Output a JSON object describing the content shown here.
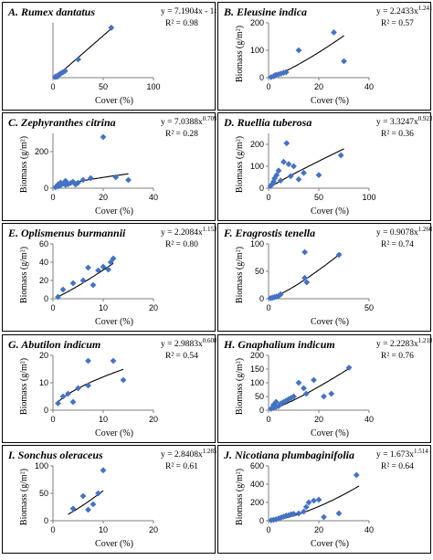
{
  "figure": {
    "background": "#ffffff"
  },
  "style": {
    "marker_color": "#4472C4",
    "axis_color": "#7f7f7f",
    "trend_color": "#000000"
  },
  "chart_data": [
    {
      "id": "A",
      "type": "scatter",
      "title": "A. Rumex dantatus",
      "equation": {
        "base": "y = 7.1904x - 14.645",
        "exp": ""
      },
      "r2": "R² = 0.98",
      "xlabel": "Cover (%)",
      "ylabel": "",
      "xlim": [
        0,
        100
      ],
      "ylim": [
        0,
        450
      ],
      "xticks": [
        "0",
        "50",
        "100"
      ],
      "yticks": [],
      "trend": {
        "kind": "linear",
        "a": 7.1904,
        "b": -14.645,
        "x_range": [
          3,
          60
        ]
      },
      "points": [
        [
          2,
          5
        ],
        [
          3,
          10
        ],
        [
          4,
          8
        ],
        [
          5,
          12
        ],
        [
          6,
          25
        ],
        [
          8,
          35
        ],
        [
          10,
          45
        ],
        [
          12,
          55
        ],
        [
          25,
          150
        ],
        [
          58,
          410
        ]
      ]
    },
    {
      "id": "B",
      "type": "scatter",
      "title": "B. Eleusine indica",
      "equation": {
        "base": "y = 2.2433x",
        "exp": "1.2412"
      },
      "r2": "R² = 0.57",
      "xlabel": "Cover (%)",
      "ylabel": "Biomass (g/m²)",
      "xlim": [
        0,
        40
      ],
      "ylim": [
        0,
        200
      ],
      "xticks": [
        "0",
        "20",
        "40"
      ],
      "yticks": [
        "0",
        "100",
        "200"
      ],
      "trend": {
        "kind": "power",
        "a": 2.2433,
        "b": 1.2412,
        "x_range": [
          0.5,
          30
        ]
      },
      "points": [
        [
          1,
          2
        ],
        [
          2,
          5
        ],
        [
          2.5,
          8
        ],
        [
          3,
          10
        ],
        [
          4,
          12
        ],
        [
          5,
          15
        ],
        [
          6,
          18
        ],
        [
          7,
          20
        ],
        [
          12,
          100
        ],
        [
          26,
          165
        ],
        [
          30,
          60
        ]
      ]
    },
    {
      "id": "C",
      "type": "scatter",
      "title": "C. Zephyranthes citrina",
      "equation": {
        "base": "y = 7.0388x",
        "exp": "0.7095"
      },
      "r2": "R² = 0.28",
      "xlabel": "Cover (%)",
      "ylabel": "Biomass (g/m²)",
      "xlim": [
        0,
        40
      ],
      "ylim": [
        0,
        300
      ],
      "xticks": [
        "0",
        "20",
        "40"
      ],
      "yticks": [
        "0",
        "200"
      ],
      "trend": {
        "kind": "power",
        "a": 7.0388,
        "b": 0.7095,
        "x_range": [
          0.5,
          30
        ]
      },
      "points": [
        [
          1,
          5
        ],
        [
          2,
          10
        ],
        [
          2,
          20
        ],
        [
          3,
          15
        ],
        [
          3,
          30
        ],
        [
          4,
          25
        ],
        [
          5,
          40
        ],
        [
          5,
          18
        ],
        [
          6,
          22
        ],
        [
          7,
          28
        ],
        [
          8,
          35
        ],
        [
          9,
          20
        ],
        [
          10,
          30
        ],
        [
          12,
          45
        ],
        [
          15,
          55
        ],
        [
          20,
          280
        ],
        [
          25,
          60
        ],
        [
          30,
          45
        ]
      ]
    },
    {
      "id": "D",
      "type": "scatter",
      "title": "D. Ruellia tuberosa",
      "equation": {
        "base": "y = 3.3247x",
        "exp": "0.9238"
      },
      "r2": "R² = 0.36",
      "xlabel": "Cover (%)",
      "ylabel": "Biomass (g/m²)",
      "xlim": [
        0,
        100
      ],
      "ylim": [
        0,
        250
      ],
      "xticks": [
        "0",
        "50",
        "100"
      ],
      "yticks": [
        "0",
        "100",
        "200"
      ],
      "trend": {
        "kind": "power",
        "a": 3.3247,
        "b": 0.9238,
        "x_range": [
          0.5,
          75
        ]
      },
      "points": [
        [
          2,
          10
        ],
        [
          3,
          15
        ],
        [
          4,
          20
        ],
        [
          5,
          30
        ],
        [
          6,
          45
        ],
        [
          8,
          60
        ],
        [
          10,
          80
        ],
        [
          12,
          35
        ],
        [
          15,
          120
        ],
        [
          18,
          205
        ],
        [
          20,
          110
        ],
        [
          22,
          55
        ],
        [
          25,
          100
        ],
        [
          30,
          40
        ],
        [
          35,
          70
        ],
        [
          50,
          60
        ],
        [
          72,
          150
        ]
      ]
    },
    {
      "id": "E",
      "type": "scatter",
      "title": "E. Oplismenus burmannii",
      "equation": {
        "base": "y = 2.2084x",
        "exp": "1.1531"
      },
      "r2": "R² = 0.80",
      "xlabel": "Cover (%)",
      "ylabel": "Biomass (g/m²)",
      "xlim": [
        0,
        20
      ],
      "ylim": [
        0,
        60
      ],
      "xticks": [
        "0",
        "10",
        "20"
      ],
      "yticks": [
        "0",
        "20",
        "40",
        "60"
      ],
      "trend": {
        "kind": "power",
        "a": 2.2084,
        "b": 1.1531,
        "x_range": [
          1,
          12
        ]
      },
      "points": [
        [
          1,
          2
        ],
        [
          2,
          10
        ],
        [
          4,
          17
        ],
        [
          6,
          20
        ],
        [
          7,
          34
        ],
        [
          8,
          15
        ],
        [
          9,
          31
        ],
        [
          10,
          35
        ],
        [
          11,
          32
        ],
        [
          11.5,
          40
        ],
        [
          12,
          44
        ]
      ]
    },
    {
      "id": "F",
      "type": "scatter",
      "title": "F. Eragrostis tenella",
      "equation": {
        "base": "y = 0.9078x",
        "exp": "1.2604"
      },
      "r2": "R² = 0.74",
      "xlabel": "Cover (%)",
      "ylabel": "Biomass (g/m²)",
      "xlim": [
        0,
        50
      ],
      "ylim": [
        0,
        100
      ],
      "xticks": [
        "0",
        "50"
      ],
      "yticks": [
        "0",
        "50",
        "100"
      ],
      "trend": {
        "kind": "power",
        "a": 0.9078,
        "b": 1.2604,
        "x_range": [
          1,
          36
        ]
      },
      "points": [
        [
          1,
          1
        ],
        [
          2,
          2
        ],
        [
          3,
          3
        ],
        [
          4,
          4
        ],
        [
          5,
          5
        ],
        [
          6,
          8
        ],
        [
          18,
          85
        ],
        [
          18,
          38
        ],
        [
          19,
          30
        ],
        [
          35,
          80
        ]
      ]
    },
    {
      "id": "G",
      "type": "scatter",
      "title": "G. Abutilon indicum",
      "equation": {
        "base": "y = 2.9883x",
        "exp": "0.6088"
      },
      "r2": "R² = 0.54",
      "xlabel": "Cover (%)",
      "ylabel": "Biomass (g/m²)",
      "xlim": [
        0,
        20
      ],
      "ylim": [
        0,
        20
      ],
      "xticks": [
        "0",
        "10",
        "20"
      ],
      "yticks": [
        "0",
        "10",
        "20"
      ],
      "trend": {
        "kind": "power",
        "a": 2.9883,
        "b": 0.6088,
        "x_range": [
          1,
          14
        ]
      },
      "points": [
        [
          1,
          2.5
        ],
        [
          2,
          5
        ],
        [
          3,
          6
        ],
        [
          4,
          3
        ],
        [
          5,
          8
        ],
        [
          7,
          9
        ],
        [
          7,
          18
        ],
        [
          12,
          18
        ],
        [
          14,
          11
        ]
      ]
    },
    {
      "id": "H",
      "type": "scatter",
      "title": "H. Gnaphalium indicum",
      "equation": {
        "base": "y = 2.2283x",
        "exp": "1.2184"
      },
      "r2": "R² = 0.76",
      "xlabel": "Cover (%)",
      "ylabel": "Biomass (g/m²)",
      "xlim": [
        0,
        40
      ],
      "ylim": [
        0,
        200
      ],
      "xticks": [
        "0",
        "20",
        "40"
      ],
      "yticks": [
        "0",
        "50",
        "100",
        "150",
        "200"
      ],
      "trend": {
        "kind": "power",
        "a": 2.2283,
        "b": 1.2184,
        "x_range": [
          0.5,
          33
        ]
      },
      "points": [
        [
          1,
          5
        ],
        [
          1.5,
          10
        ],
        [
          2,
          8
        ],
        [
          2,
          20
        ],
        [
          3,
          12
        ],
        [
          3,
          30
        ],
        [
          4,
          15
        ],
        [
          5,
          25
        ],
        [
          6,
          30
        ],
        [
          7,
          35
        ],
        [
          8,
          40
        ],
        [
          9,
          45
        ],
        [
          10,
          50
        ],
        [
          12,
          100
        ],
        [
          14,
          80
        ],
        [
          15,
          60
        ],
        [
          18,
          110
        ],
        [
          22,
          50
        ],
        [
          25,
          60
        ],
        [
          32,
          155
        ]
      ]
    },
    {
      "id": "I",
      "type": "scatter",
      "title": "I. Sonchus oleraceus",
      "equation": {
        "base": "y = 2.8408x",
        "exp": "1.2858"
      },
      "r2": "R² = 0.61",
      "xlabel": "Cover (%)",
      "ylabel": "Biomass (g/m²)",
      "xlim": [
        0,
        20
      ],
      "ylim": [
        0,
        100
      ],
      "xticks": [
        "0",
        "10",
        "20"
      ],
      "yticks": [
        "0",
        "50",
        "100"
      ],
      "trend": {
        "kind": "power",
        "a": 2.8408,
        "b": 1.2858,
        "x_range": [
          3,
          10
        ]
      },
      "points": [
        [
          4,
          22
        ],
        [
          6,
          45
        ],
        [
          7,
          20
        ],
        [
          8,
          30
        ],
        [
          9,
          50
        ],
        [
          10,
          92
        ]
      ]
    },
    {
      "id": "J",
      "type": "scatter",
      "title": "J. Nicotiana plumbaginifolia",
      "equation": {
        "base": "y = 1.673x",
        "exp": "1.514"
      },
      "r2": "R² = 0.64",
      "xlabel": "Cover (%)",
      "ylabel": "Biomass (g/m²)",
      "xlim": [
        0,
        40
      ],
      "ylim": [
        0,
        600
      ],
      "xticks": [
        "0",
        "20",
        "40"
      ],
      "yticks": [
        "0",
        "200",
        "400",
        "600"
      ],
      "trend": {
        "kind": "power",
        "a": 1.673,
        "b": 1.514,
        "x_range": [
          0.5,
          36
        ]
      },
      "points": [
        [
          1,
          5
        ],
        [
          2,
          10
        ],
        [
          3,
          15
        ],
        [
          4,
          25
        ],
        [
          5,
          35
        ],
        [
          6,
          45
        ],
        [
          7,
          55
        ],
        [
          8,
          60
        ],
        [
          9,
          70
        ],
        [
          10,
          75
        ],
        [
          12,
          80
        ],
        [
          14,
          100
        ],
        [
          15,
          150
        ],
        [
          16,
          200
        ],
        [
          18,
          220
        ],
        [
          20,
          230
        ],
        [
          22,
          40
        ],
        [
          28,
          80
        ],
        [
          35,
          500
        ]
      ]
    }
  ]
}
